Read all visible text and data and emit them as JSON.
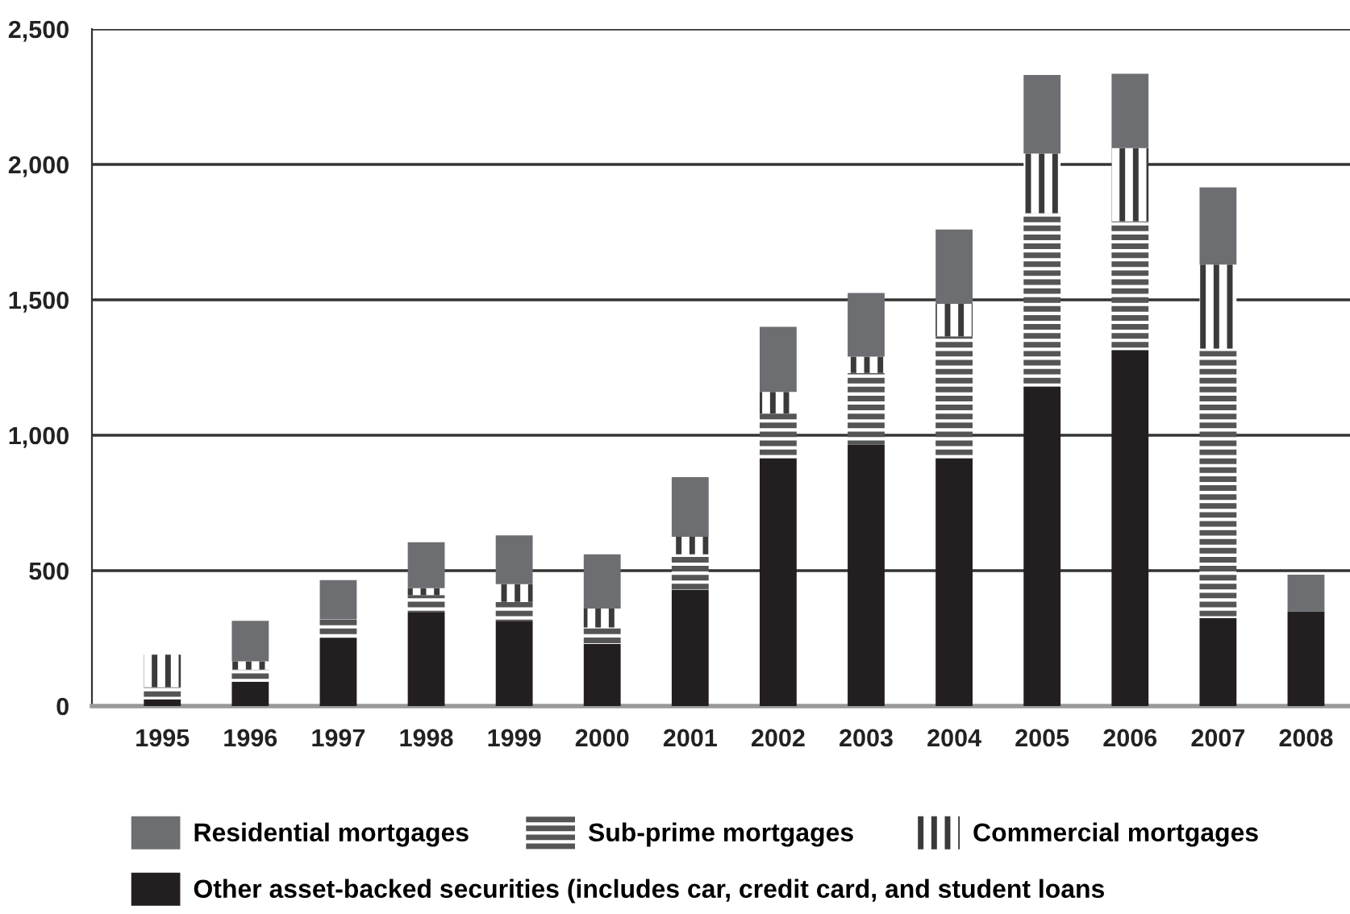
{
  "chart_data": {
    "type": "bar",
    "stacked": true,
    "categories": [
      "1995",
      "1996",
      "1997",
      "1998",
      "1999",
      "2000",
      "2001",
      "2002",
      "2003",
      "2004",
      "2005",
      "2006",
      "2007",
      "2008"
    ],
    "series": [
      {
        "name": "Other asset-backed securities (includes car, credit card, and student loans",
        "color": "#231f20",
        "values": [
          25,
          90,
          250,
          345,
          315,
          230,
          430,
          915,
          965,
          915,
          1180,
          1315,
          325,
          350
        ]
      },
      {
        "name": "Sub-prime mortgages",
        "color": "#555555",
        "values": [
          45,
          45,
          70,
          65,
          70,
          60,
          130,
          165,
          265,
          450,
          640,
          475,
          995,
          0
        ]
      },
      {
        "name": "Commercial mortgages",
        "color": "#3a3a3a",
        "values": [
          120,
          30,
          0,
          25,
          65,
          70,
          65,
          80,
          60,
          120,
          220,
          270,
          310,
          0
        ]
      },
      {
        "name": "Residential mortgages",
        "color": "#6d6e71",
        "values": [
          0,
          150,
          145,
          170,
          180,
          200,
          220,
          240,
          235,
          275,
          290,
          275,
          285,
          135
        ]
      }
    ],
    "ylim": [
      0,
      2500
    ],
    "yticks": [
      {
        "value": 0,
        "label": "0"
      },
      {
        "value": 500,
        "label": "500"
      },
      {
        "value": 1000,
        "label": "1,000"
      },
      {
        "value": 1500,
        "label": "1,500"
      },
      {
        "value": 2000,
        "label": "2,000"
      },
      {
        "value": 2500,
        "label": "2,500"
      }
    ],
    "grid": "y",
    "legend": "bottom"
  }
}
